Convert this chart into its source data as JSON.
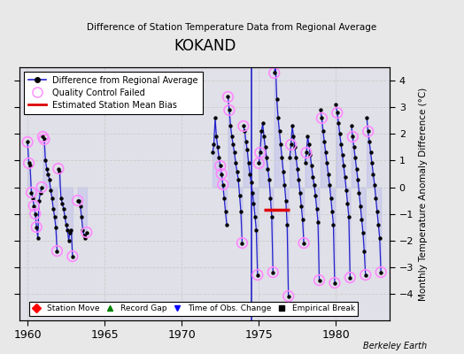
{
  "title": "KOKAND",
  "subtitle": "Difference of Station Temperature Data from Regional Average",
  "ylabel": "Monthly Temperature Anomaly Difference (°C)",
  "xlim": [
    1959.5,
    1983.5
  ],
  "ylim": [
    -5,
    4.5
  ],
  "yticks": [
    -4,
    -3,
    -2,
    -1,
    0,
    1,
    2,
    3,
    4
  ],
  "xticks": [
    1960,
    1965,
    1970,
    1975,
    1980
  ],
  "bg_color": "#e8e8e8",
  "plot_bg_color": "#e0e0e8",
  "line_color": "#2222cc",
  "line_fill_color": "#aaaaee",
  "dot_color": "#000000",
  "qc_color": "#ff88ff",
  "bias_color": "#dd0000",
  "grid_color": "#cccccc",
  "segments": [
    {
      "x": [
        1960.0,
        1960.083,
        1960.167,
        1960.25,
        1960.333,
        1960.417,
        1960.5,
        1960.583,
        1960.667,
        1960.75,
        1960.833,
        1960.917
      ],
      "y": [
        1.7,
        0.9,
        0.8,
        -0.2,
        -0.4,
        -0.7,
        -1.0,
        -1.5,
        -1.9,
        -0.5,
        -0.2,
        0.0
      ]
    },
    {
      "x": [
        1961.0,
        1961.083,
        1961.167,
        1961.25,
        1961.333,
        1961.417,
        1961.5,
        1961.583,
        1961.667,
        1961.75,
        1961.833,
        1961.917
      ],
      "y": [
        1.9,
        1.8,
        1.0,
        0.7,
        0.5,
        0.3,
        -0.1,
        -0.4,
        -0.8,
        -1.1,
        -1.5,
        -2.4
      ]
    },
    {
      "x": [
        1962.0,
        1962.083,
        1962.167,
        1962.25,
        1962.333,
        1962.417,
        1962.5,
        1962.583,
        1962.667,
        1962.75,
        1962.833,
        1962.917
      ],
      "y": [
        0.7,
        0.6,
        -0.4,
        -0.6,
        -0.8,
        -1.1,
        -1.4,
        -1.6,
        -2.0,
        -1.7,
        -1.6,
        -2.6
      ]
    },
    {
      "x": [
        1963.25,
        1963.333,
        1963.417,
        1963.5,
        1963.583,
        1963.667,
        1963.75,
        1963.833
      ],
      "y": [
        -0.5,
        -0.5,
        -0.7,
        -1.1,
        -1.6,
        -1.8,
        -1.9,
        -1.7
      ]
    },
    {
      "x": [
        1972.0,
        1972.083,
        1972.167,
        1972.25,
        1972.333,
        1972.417,
        1972.5,
        1972.583,
        1972.667,
        1972.75,
        1972.833,
        1972.917
      ],
      "y": [
        1.3,
        1.6,
        2.6,
        1.9,
        1.5,
        1.1,
        0.8,
        0.5,
        0.1,
        -0.4,
        -0.9,
        -1.4
      ]
    },
    {
      "x": [
        1973.0,
        1973.083,
        1973.167,
        1973.25,
        1973.333,
        1973.417,
        1973.5,
        1973.583,
        1973.667,
        1973.75,
        1973.833,
        1973.917
      ],
      "y": [
        3.4,
        2.9,
        2.3,
        1.9,
        1.6,
        1.3,
        0.9,
        0.6,
        0.3,
        -0.3,
        -0.9,
        -2.1
      ]
    },
    {
      "x": [
        1974.0,
        1974.083,
        1974.167,
        1974.25,
        1974.333,
        1974.417,
        1974.5,
        1974.583,
        1974.667,
        1974.75,
        1974.833,
        1974.917
      ],
      "y": [
        2.3,
        2.1,
        1.7,
        1.4,
        0.9,
        0.5,
        0.2,
        -0.2,
        -0.6,
        -1.1,
        -1.6,
        -3.3
      ]
    },
    {
      "x": [
        1975.0,
        1975.083,
        1975.167,
        1975.25,
        1975.333,
        1975.417,
        1975.5,
        1975.583,
        1975.667,
        1975.75,
        1975.833,
        1975.917
      ],
      "y": [
        0.9,
        1.3,
        2.1,
        2.4,
        1.9,
        1.5,
        1.1,
        0.7,
        0.3,
        -0.4,
        -1.1,
        -3.2
      ]
    },
    {
      "x": [
        1976.0,
        1976.083,
        1976.167,
        1976.25,
        1976.333,
        1976.417,
        1976.5,
        1976.583,
        1976.667,
        1976.75,
        1976.833,
        1976.917
      ],
      "y": [
        4.3,
        4.6,
        3.3,
        2.6,
        2.1,
        1.6,
        1.1,
        0.6,
        0.1,
        -0.5,
        -1.4,
        -4.1
      ]
    },
    {
      "x": [
        1977.0,
        1977.083,
        1977.167,
        1977.25,
        1977.333,
        1977.417,
        1977.5,
        1977.583,
        1977.667,
        1977.75,
        1977.833,
        1977.917
      ],
      "y": [
        1.1,
        1.6,
        2.3,
        1.9,
        1.5,
        1.1,
        0.7,
        0.3,
        -0.2,
        -0.7,
        -1.2,
        -2.1
      ]
    },
    {
      "x": [
        1978.0,
        1978.083,
        1978.167,
        1978.25,
        1978.333,
        1978.417,
        1978.5,
        1978.583,
        1978.667,
        1978.75,
        1978.833,
        1978.917
      ],
      "y": [
        0.9,
        1.3,
        1.9,
        1.6,
        1.2,
        0.8,
        0.4,
        0.1,
        -0.3,
        -0.8,
        -1.3,
        -3.5
      ]
    },
    {
      "x": [
        1979.0,
        1979.083,
        1979.167,
        1979.25,
        1979.333,
        1979.417,
        1979.5,
        1979.583,
        1979.667,
        1979.75,
        1979.833,
        1979.917
      ],
      "y": [
        2.9,
        2.6,
        2.1,
        1.7,
        1.3,
        0.9,
        0.5,
        0.1,
        -0.4,
        -0.9,
        -1.4,
        -3.6
      ]
    },
    {
      "x": [
        1980.0,
        1980.083,
        1980.167,
        1980.25,
        1980.333,
        1980.417,
        1980.5,
        1980.583,
        1980.667,
        1980.75,
        1980.833,
        1980.917
      ],
      "y": [
        3.1,
        2.8,
        2.4,
        2.0,
        1.6,
        1.2,
        0.8,
        0.4,
        -0.1,
        -0.6,
        -1.1,
        -3.4
      ]
    },
    {
      "x": [
        1981.0,
        1981.083,
        1981.167,
        1981.25,
        1981.333,
        1981.417,
        1981.5,
        1981.583,
        1981.667,
        1981.75,
        1981.833,
        1981.917
      ],
      "y": [
        2.3,
        1.9,
        1.5,
        1.1,
        0.7,
        0.3,
        -0.2,
        -0.7,
        -1.2,
        -1.7,
        -2.4,
        -3.3
      ]
    },
    {
      "x": [
        1982.0,
        1982.083,
        1982.167,
        1982.25,
        1982.333,
        1982.417,
        1982.5,
        1982.583,
        1982.667,
        1982.75,
        1982.833,
        1982.917
      ],
      "y": [
        2.6,
        2.1,
        1.7,
        1.3,
        0.9,
        0.5,
        0.1,
        -0.4,
        -0.9,
        -1.4,
        -1.9,
        -3.2
      ]
    }
  ],
  "qc_failed_indices": [
    [
      0,
      1,
      3,
      5,
      6,
      7,
      11
    ],
    [
      0,
      1,
      11
    ],
    [
      0,
      11
    ],
    [
      0,
      7
    ],
    [
      6,
      7,
      8
    ],
    [
      0,
      1,
      11
    ],
    [
      0,
      11
    ],
    [
      0,
      1,
      11
    ],
    [
      0,
      11
    ],
    [
      1,
      11
    ],
    [
      1,
      11
    ],
    [
      1,
      11
    ],
    [
      1,
      11
    ],
    [
      1,
      11
    ],
    [
      1,
      11
    ]
  ],
  "bias_x_start": 1975.3,
  "bias_x_end": 1977.0,
  "bias_y": -0.85,
  "obs_change_x": 1974.5,
  "watermark": "Berkeley Earth",
  "legend1_items": [
    "Difference from Regional Average",
    "Quality Control Failed",
    "Estimated Station Mean Bias"
  ],
  "legend2_items": [
    "Station Move",
    "Record Gap",
    "Time of Obs. Change",
    "Empirical Break"
  ]
}
